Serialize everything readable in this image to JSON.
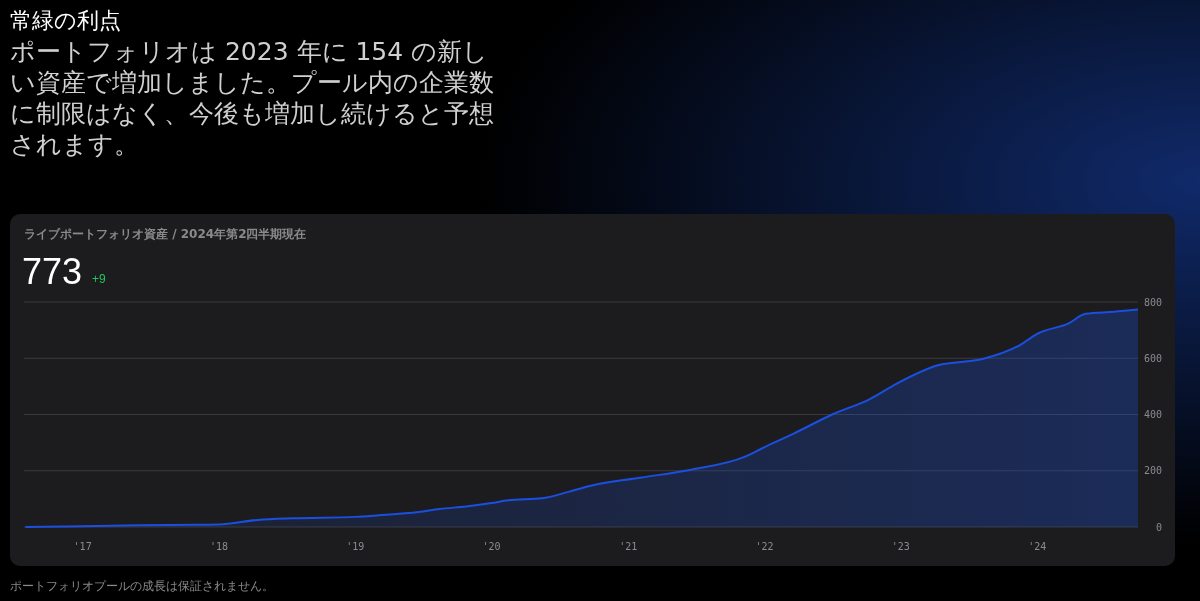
{
  "chart_data": {
    "type": "area",
    "title": "常緑の利点",
    "subtitle": "ポートフォリオは 2023 年に 154 の新しい資産で増加しました。プール内の企業数に制限はなく、今後も増加し続けると予想されます。",
    "annotations": [
      "ライブポートフォリオ資産 / 2024年第2四半期現在",
      "773",
      "+9",
      "ポートフォリオプールの成長は保証されません。"
    ],
    "x": [
      "2016-08-01",
      "2017-01-01",
      "2017-06-01",
      "2017-11-01",
      "2018-01-01",
      "2018-04-15",
      "2018-07-15",
      "2019-01-01",
      "2019-03-01",
      "2019-06-20",
      "2019-08-15",
      "2019-10-25",
      "2020-01-01",
      "2020-02-15",
      "2020-05-15",
      "2020-07-25",
      "2020-09-20",
      "2021-02-01",
      "2021-06-15",
      "2021-11-10",
      "2022-01-01",
      "2022-03-20",
      "2022-07-01",
      "2022-10-10",
      "2022-12-20",
      "2023-04-10",
      "2023-08-10",
      "2023-11-15",
      "2024-01-01",
      "2024-03-25",
      "2024-05-10",
      "2024-07-25",
      "2024-09-27"
    ],
    "values": [
      0,
      3,
      6,
      8,
      9,
      25,
      31,
      36,
      41,
      53,
      64,
      73,
      85,
      95,
      102,
      125,
      146,
      175,
      203,
      250,
      284,
      332,
      400,
      455,
      509,
      575,
      598,
      646,
      687,
      724,
      758,
      765,
      773
    ],
    "color": "#1a4fe0",
    "xlim": [
      "2016-07-28",
      "2024-09-27"
    ],
    "xticks": [
      {
        "value": "2017-01-01",
        "label": "'17"
      },
      {
        "value": "2018-01-01",
        "label": "'18"
      },
      {
        "value": "2019-01-01",
        "label": "'19"
      },
      {
        "value": "2020-01-01",
        "label": "'20"
      },
      {
        "value": "2021-01-01",
        "label": "'21"
      },
      {
        "value": "2022-01-01",
        "label": "'22"
      },
      {
        "value": "2023-01-01",
        "label": "'23"
      },
      {
        "value": "2024-01-01",
        "label": "'24"
      }
    ],
    "ylim": [
      0,
      800
    ],
    "yticks": [
      0,
      200,
      400,
      600,
      800
    ],
    "grid": "y"
  }
}
